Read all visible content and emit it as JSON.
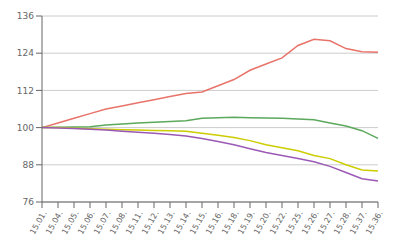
{
  "chart_data": {
    "type": "line",
    "categories": [
      "15.01.",
      "15.04.",
      "15.05.",
      "15.06.",
      "15.07.",
      "15.08.",
      "15.11.",
      "15.12.",
      "15.13.",
      "15.14.",
      "15.15.",
      "15.16.",
      "15.18.",
      "15.19.",
      "15.20.",
      "15.22.",
      "15.25.",
      "15.26.",
      "15.27.",
      "15.28.",
      "15.37.",
      "15.36."
    ],
    "series": [
      {
        "color": "#e8736a",
        "values": [
          100,
          101.5,
          103,
          104.5,
          106,
          107,
          108,
          109,
          110,
          111,
          111.5,
          113.5,
          115.5,
          118.5,
          120.5,
          122.5,
          126.5,
          128.5,
          128,
          125.5,
          124.5,
          124.3
        ]
      },
      {
        "color": "#5ca85c",
        "values": [
          100,
          100.1,
          100.2,
          100.3,
          100.8,
          101.2,
          101.5,
          101.7,
          102.0,
          102.2,
          103.0,
          103.2,
          103.3,
          103.2,
          103.1,
          103.0,
          102.8,
          102.5,
          101.5,
          100.5,
          99.0,
          96.5
        ]
      },
      {
        "color": "#cccc00",
        "values": [
          100,
          100.0,
          99.8,
          99.6,
          99.5,
          99.3,
          99.2,
          99.1,
          99.0,
          98.8,
          98.2,
          97.5,
          96.8,
          95.8,
          94.5,
          93.5,
          92.5,
          91.0,
          90.0,
          88.0,
          86.3,
          86.0
        ]
      },
      {
        "color": "#9b59b6",
        "values": [
          100,
          99.9,
          99.7,
          99.5,
          99.2,
          98.8,
          98.5,
          98.2,
          97.8,
          97.3,
          96.5,
          95.5,
          94.5,
          93.2,
          92.0,
          91.0,
          90.0,
          89.0,
          87.5,
          85.5,
          83.5,
          82.8
        ]
      }
    ],
    "ylim": [
      76,
      136
    ],
    "yticks": [
      76,
      88,
      100,
      112,
      124,
      136
    ],
    "grid": "y"
  }
}
